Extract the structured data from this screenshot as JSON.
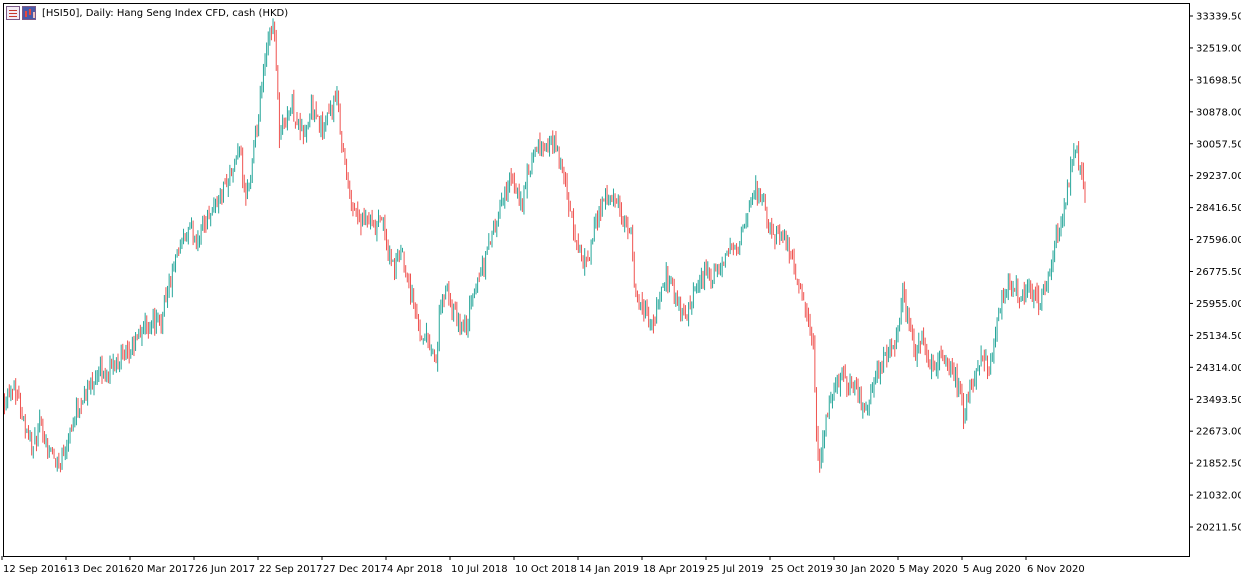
{
  "title": "[HSI50], Daily:  Hang Seng Index CFD, cash (HKD)",
  "icons": [
    "list-icon",
    "chart-icon"
  ],
  "colors": {
    "up": "#26a69a",
    "down": "#ef5350",
    "background": "#ffffff",
    "axis": "#000000"
  },
  "chart_data": {
    "type": "candlestick",
    "title": "[HSI50], Daily:  Hang Seng Index CFD, cash (HKD)",
    "xlabel": "",
    "ylabel": "",
    "ylim": [
      19700,
      33500
    ],
    "yticks": [
      33339.5,
      32519.0,
      31698.5,
      30878.0,
      30057.5,
      29237.0,
      28416.5,
      27596.0,
      26775.5,
      25955.0,
      25134.5,
      24314.0,
      23493.5,
      22673.0,
      21852.5,
      21032.0,
      20211.5
    ],
    "ytick_labels": [
      "33339.50",
      "32519.00",
      "31698.50",
      "30878.00",
      "30057.50",
      "29237.00",
      "28416.50",
      "27596.00",
      "26775.50",
      "25955.00",
      "25134.50",
      "24314.00",
      "23493.50",
      "22673.00",
      "21852.50",
      "21032.00",
      "20211.50"
    ],
    "xticks": [
      "12 Sep 2016",
      "13 Dec 2016",
      "20 Mar 2017",
      "26 Jun 2017",
      "22 Sep 2017",
      "27 Dec 2017",
      "4 Apr 2018",
      "10 Jul 2018",
      "10 Oct 2018",
      "14 Jan 2019",
      "18 Apr 2019",
      "25 Jul 2019",
      "25 Oct 2019",
      "30 Jan 2020",
      "5 May 2020",
      "5 Aug 2020",
      "6 Nov 2020"
    ],
    "bars_per_xtick": 16,
    "total_bars": 270,
    "close_path": [
      [
        0,
        23500
      ],
      [
        6,
        23900
      ],
      [
        12,
        23000
      ],
      [
        18,
        22200
      ],
      [
        22,
        22800
      ],
      [
        28,
        22200
      ],
      [
        34,
        21800
      ],
      [
        40,
        22600
      ],
      [
        46,
        23300
      ],
      [
        52,
        23700
      ],
      [
        58,
        24200
      ],
      [
        64,
        24100
      ],
      [
        70,
        24600
      ],
      [
        76,
        24500
      ],
      [
        82,
        25000
      ],
      [
        88,
        25400
      ],
      [
        94,
        25500
      ],
      [
        98,
        25400
      ],
      [
        100,
        26100
      ],
      [
        104,
        26500
      ],
      [
        108,
        27100
      ],
      [
        112,
        27600
      ],
      [
        116,
        27800
      ],
      [
        120,
        27600
      ],
      [
        124,
        27900
      ],
      [
        128,
        28300
      ],
      [
        132,
        28500
      ],
      [
        136,
        28800
      ],
      [
        140,
        29200
      ],
      [
        144,
        29400
      ],
      [
        146,
        30000
      ],
      [
        148,
        29600
      ],
      [
        150,
        28700
      ],
      [
        154,
        29200
      ],
      [
        158,
        30400
      ],
      [
        161,
        31500
      ],
      [
        164,
        32400
      ],
      [
        166,
        33000
      ],
      [
        168,
        33100
      ],
      [
        170,
        32200
      ],
      [
        172,
        30200
      ],
      [
        176,
        30800
      ],
      [
        180,
        31000
      ],
      [
        184,
        30500
      ],
      [
        188,
        30300
      ],
      [
        192,
        31000
      ],
      [
        196,
        30600
      ],
      [
        200,
        30400
      ],
      [
        204,
        30900
      ],
      [
        208,
        31200
      ],
      [
        212,
        29800
      ],
      [
        216,
        28700
      ],
      [
        220,
        28300
      ],
      [
        224,
        28000
      ],
      [
        228,
        28100
      ],
      [
        232,
        27800
      ],
      [
        236,
        28200
      ],
      [
        240,
        27200
      ],
      [
        244,
        26900
      ],
      [
        248,
        27300
      ],
      [
        252,
        26700
      ],
      [
        256,
        25900
      ],
      [
        260,
        25200
      ],
      [
        264,
        25100
      ],
      [
        268,
        24700
      ],
      [
        270,
        24500
      ],
      [
        272,
        25500
      ],
      [
        276,
        26400
      ],
      [
        280,
        25800
      ],
      [
        284,
        25400
      ],
      [
        288,
        25300
      ],
      [
        292,
        25900
      ],
      [
        296,
        26600
      ],
      [
        300,
        27000
      ],
      [
        304,
        27600
      ],
      [
        308,
        28000
      ],
      [
        312,
        28700
      ],
      [
        316,
        29100
      ],
      [
        320,
        28800
      ],
      [
        324,
        28600
      ],
      [
        328,
        29300
      ],
      [
        332,
        29800
      ],
      [
        336,
        30000
      ],
      [
        340,
        29900
      ],
      [
        344,
        30100
      ],
      [
        348,
        29500
      ],
      [
        352,
        28700
      ],
      [
        356,
        27800
      ],
      [
        360,
        27300
      ],
      [
        364,
        26900
      ],
      [
        368,
        27600
      ],
      [
        372,
        28400
      ],
      [
        376,
        28700
      ],
      [
        380,
        28600
      ],
      [
        384,
        28400
      ],
      [
        388,
        28000
      ],
      [
        392,
        27600
      ],
      [
        394,
        26400
      ],
      [
        398,
        25900
      ],
      [
        402,
        25700
      ],
      [
        406,
        25400
      ],
      [
        410,
        26100
      ],
      [
        414,
        26600
      ],
      [
        418,
        26400
      ],
      [
        422,
        25800
      ],
      [
        426,
        25600
      ],
      [
        430,
        26000
      ],
      [
        434,
        26300
      ],
      [
        438,
        26800
      ],
      [
        442,
        26600
      ],
      [
        446,
        26700
      ],
      [
        450,
        27000
      ],
      [
        454,
        27300
      ],
      [
        458,
        27500
      ],
      [
        462,
        27800
      ],
      [
        466,
        28300
      ],
      [
        470,
        28900
      ],
      [
        474,
        28600
      ],
      [
        478,
        27900
      ],
      [
        482,
        27600
      ],
      [
        486,
        27900
      ],
      [
        490,
        27400
      ],
      [
        494,
        26800
      ],
      [
        498,
        26200
      ],
      [
        502,
        25600
      ],
      [
        506,
        24800
      ],
      [
        508,
        22600
      ],
      [
        510,
        21600
      ],
      [
        512,
        22400
      ],
      [
        516,
        23400
      ],
      [
        520,
        23800
      ],
      [
        524,
        24200
      ],
      [
        528,
        23800
      ],
      [
        532,
        24000
      ],
      [
        536,
        23400
      ],
      [
        540,
        23200
      ],
      [
        544,
        24000
      ],
      [
        548,
        24300
      ],
      [
        552,
        24600
      ],
      [
        556,
        24900
      ],
      [
        560,
        25300
      ],
      [
        562,
        26300
      ],
      [
        566,
        25400
      ],
      [
        570,
        24700
      ],
      [
        574,
        25100
      ],
      [
        578,
        24500
      ],
      [
        582,
        24200
      ],
      [
        586,
        24700
      ],
      [
        590,
        24400
      ],
      [
        594,
        24200
      ],
      [
        598,
        23600
      ],
      [
        600,
        23100
      ],
      [
        604,
        23700
      ],
      [
        608,
        24200
      ],
      [
        612,
        24700
      ],
      [
        616,
        24300
      ],
      [
        620,
        25200
      ],
      [
        624,
        26100
      ],
      [
        628,
        26600
      ],
      [
        632,
        26400
      ],
      [
        636,
        26100
      ],
      [
        640,
        26300
      ],
      [
        644,
        26200
      ],
      [
        648,
        26000
      ],
      [
        652,
        26400
      ],
      [
        656,
        27300
      ],
      [
        660,
        27900
      ],
      [
        664,
        28600
      ],
      [
        668,
        29700
      ],
      [
        670,
        30000
      ],
      [
        674,
        29200
      ],
      [
        676,
        28500
      ]
    ]
  }
}
